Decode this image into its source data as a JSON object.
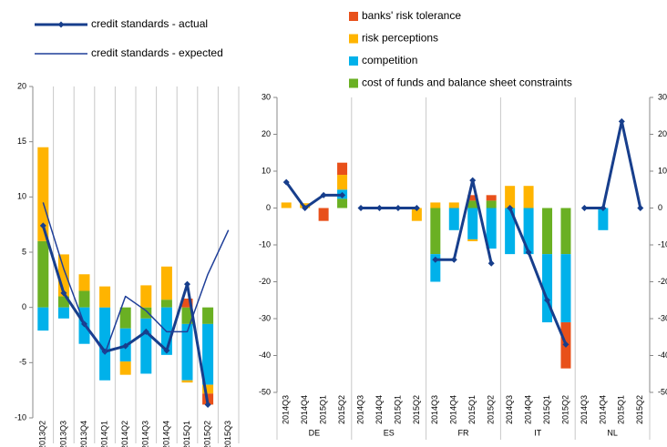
{
  "chart_data": [
    {
      "type": "bar",
      "categories": [
        "2013Q2",
        "2013Q3",
        "2013Q4",
        "2014Q1",
        "2014Q2",
        "2014Q3",
        "2014Q4",
        "2015Q1",
        "2015Q2",
        "2015Q3"
      ],
      "ylim": [
        -10,
        20
      ],
      "yticks": [
        -10,
        -5,
        0,
        5,
        10,
        15,
        20
      ],
      "series": [
        {
          "name": "banks' risk tolerance",
          "type": "bar",
          "color": "#e8501a",
          "values": [
            0,
            0,
            0,
            0,
            0,
            0,
            0,
            0.8,
            -1,
            null
          ]
        },
        {
          "name": "risk perceptions",
          "type": "bar",
          "color": "#ffb400",
          "values": [
            8.5,
            3.8,
            1.5,
            1.9,
            -1.2,
            2,
            3,
            -0.2,
            -0.8,
            null
          ]
        },
        {
          "name": "competition",
          "type": "bar",
          "color": "#00b1ea",
          "values": [
            -2.1,
            -1,
            -3.3,
            -6.6,
            -3,
            -5,
            -4.3,
            -5.1,
            -5.5,
            null
          ]
        },
        {
          "name": "cost of funds and balance sheet constraints",
          "type": "bar",
          "color": "#6ab023",
          "values": [
            6,
            1,
            1.5,
            0,
            -1.9,
            -1,
            0.7,
            -1.5,
            -1.5,
            null
          ]
        },
        {
          "name": "credit standards - actual",
          "type": "line",
          "marker": true,
          "width": 3,
          "color": "#173e8c",
          "values": [
            7.4,
            1.3,
            -1.5,
            -4,
            -3.5,
            -2.2,
            -3.9,
            2.1,
            -8.8,
            null
          ]
        },
        {
          "name": "credit standards - expected",
          "type": "line",
          "marker": false,
          "width": 1.5,
          "color": "#1f3f99",
          "values": [
            9.5,
            3.5,
            -1.5,
            -4.2,
            1,
            -0.3,
            -2.2,
            -2.2,
            3,
            7
          ]
        }
      ]
    },
    {
      "type": "bar",
      "groups": [
        "DE",
        "ES",
        "FR",
        "IT",
        "NL"
      ],
      "categories": [
        "2014Q3",
        "2014Q4",
        "2015Q1",
        "2015Q2",
        "2014Q3",
        "2014Q4",
        "2015Q1",
        "2015Q2",
        "2014Q3",
        "2014Q4",
        "2015Q1",
        "2015Q2",
        "2014Q3",
        "2014Q4",
        "2015Q1",
        "2015Q2",
        "2014Q3",
        "2014Q4",
        "2015Q1",
        "2015Q2"
      ],
      "ylim": [
        -50,
        30
      ],
      "yticks": [
        -50,
        -40,
        -30,
        -20,
        -10,
        0,
        10,
        20,
        30
      ],
      "y2lim": [
        -50,
        30
      ],
      "y2ticks": [
        -50,
        -40,
        -30,
        -20,
        -10,
        0,
        10,
        20,
        30
      ],
      "series": [
        {
          "name": "banks' risk tolerance",
          "type": "bar",
          "color": "#e8501a",
          "values": [
            0,
            0,
            -3.5,
            3.3,
            0,
            0,
            0,
            0,
            0,
            0,
            1.5,
            1.5,
            0,
            0,
            0,
            -12.5,
            0,
            0,
            0,
            0
          ]
        },
        {
          "name": "risk perceptions",
          "type": "bar",
          "color": "#ffb400",
          "values": [
            1.5,
            1.3,
            0,
            4,
            0,
            0,
            0,
            -3.5,
            1.5,
            1.5,
            -0.5,
            0,
            6,
            6,
            0,
            0,
            0,
            0,
            0,
            0
          ]
        },
        {
          "name": "competition",
          "type": "bar",
          "color": "#00b1ea",
          "values": [
            0,
            0,
            0,
            2.5,
            0,
            0,
            0,
            0,
            -7.5,
            -6,
            -8.5,
            -11,
            -12.5,
            -12.5,
            -18.5,
            -18.5,
            0,
            -6,
            0,
            0
          ]
        },
        {
          "name": "cost of funds and balance sheet constraints",
          "type": "bar",
          "color": "#6ab023",
          "values": [
            0,
            0,
            0,
            2.5,
            0,
            0,
            0,
            0,
            -12.5,
            0,
            2,
            2,
            0,
            0,
            -12.5,
            -12.5,
            0,
            0,
            0,
            0
          ]
        },
        {
          "name": "credit standards - actual",
          "type": "line",
          "marker": true,
          "width": 3,
          "color": "#173e8c",
          "values": [
            7,
            0,
            3.5,
            3.5,
            0,
            0,
            0,
            0,
            -14,
            -14,
            7.5,
            -15,
            0,
            -12,
            -25,
            -37,
            0,
            0,
            23.5,
            0
          ]
        }
      ]
    }
  ]
}
